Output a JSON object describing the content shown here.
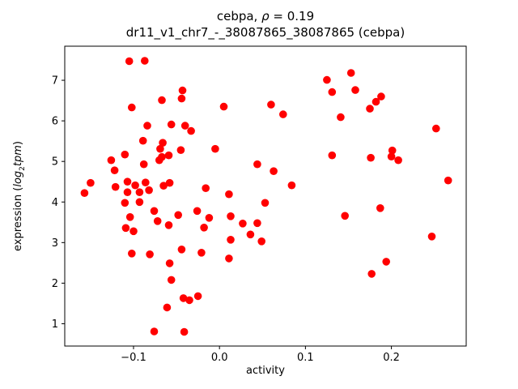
{
  "figure": {
    "background": "#ffffff"
  },
  "chart_data": {
    "type": "scatter",
    "title": "cebpa, ρ = 0.19",
    "title_parts": {
      "prefix": "cebpa, ",
      "rho": "ρ",
      "suffix": " = 0.19"
    },
    "subtitle": "dr11_v1_chr7_-_38087865_38087865 (cebpa)",
    "rho": 0.19,
    "xlabel": "activity",
    "ylabel": "expression (log2tpm)",
    "ylabel_parts": {
      "prefix": "expression (",
      "log": "log",
      "sub": "2",
      "tpm": "tpm",
      "suffix": ")"
    },
    "xlim": [
      -0.18,
      0.287
    ],
    "ylim": [
      0.45,
      7.84
    ],
    "xticks": [
      -0.1,
      0.0,
      0.1,
      0.2
    ],
    "xtick_labels": [
      "−0.1",
      "0.0",
      "0.1",
      "0.2"
    ],
    "yticks": [
      1,
      2,
      3,
      4,
      5,
      6,
      7
    ],
    "ytick_labels": [
      "1",
      "2",
      "3",
      "4",
      "5",
      "6",
      "7"
    ],
    "grid": false,
    "legend": null,
    "marker": {
      "shape": "circle",
      "color": "#ff0000",
      "radius": 4.8
    },
    "points": [
      [
        -0.105,
        7.47
      ],
      [
        -0.087,
        7.48
      ],
      [
        -0.102,
        6.33
      ],
      [
        -0.067,
        6.51
      ],
      [
        -0.043,
        6.75
      ],
      [
        -0.044,
        6.55
      ],
      [
        -0.084,
        5.88
      ],
      [
        -0.056,
        5.91
      ],
      [
        -0.04,
        5.88
      ],
      [
        -0.033,
        5.75
      ],
      [
        -0.089,
        5.51
      ],
      [
        -0.066,
        5.46
      ],
      [
        -0.069,
        5.31
      ],
      [
        -0.067,
        5.11
      ],
      [
        -0.059,
        5.15
      ],
      [
        -0.045,
        5.28
      ],
      [
        -0.11,
        5.17
      ],
      [
        -0.126,
        5.03
      ],
      [
        -0.07,
        5.03
      ],
      [
        -0.088,
        4.93
      ],
      [
        -0.122,
        4.78
      ],
      [
        -0.15,
        4.47
      ],
      [
        -0.157,
        4.22
      ],
      [
        -0.121,
        4.37
      ],
      [
        -0.107,
        4.5
      ],
      [
        -0.107,
        4.24
      ],
      [
        -0.098,
        4.41
      ],
      [
        -0.093,
        4.24
      ],
      [
        -0.086,
        4.48
      ],
      [
        -0.082,
        4.29
      ],
      [
        -0.065,
        4.4
      ],
      [
        -0.058,
        4.47
      ],
      [
        -0.016,
        4.34
      ],
      [
        0.011,
        4.19
      ],
      [
        0.125,
        7.01
      ],
      [
        0.153,
        7.18
      ],
      [
        0.131,
        6.71
      ],
      [
        0.158,
        6.76
      ],
      [
        0.188,
        6.6
      ],
      [
        0.182,
        6.47
      ],
      [
        0.175,
        6.3
      ],
      [
        0.141,
        6.09
      ],
      [
        0.005,
        6.35
      ],
      [
        0.06,
        6.4
      ],
      [
        0.074,
        6.16
      ],
      [
        0.252,
        5.81
      ],
      [
        -0.005,
        5.31
      ],
      [
        0.131,
        5.15
      ],
      [
        0.044,
        4.93
      ],
      [
        0.063,
        4.76
      ],
      [
        0.084,
        4.41
      ],
      [
        0.201,
        5.27
      ],
      [
        0.2,
        5.12
      ],
      [
        0.208,
        5.03
      ],
      [
        0.176,
        5.09
      ],
      [
        0.266,
        4.53
      ],
      [
        -0.11,
        3.98
      ],
      [
        -0.093,
        4.0
      ],
      [
        -0.076,
        3.78
      ],
      [
        -0.104,
        3.63
      ],
      [
        -0.072,
        3.53
      ],
      [
        -0.059,
        3.43
      ],
      [
        -0.048,
        3.68
      ],
      [
        -0.026,
        3.78
      ],
      [
        -0.109,
        3.36
      ],
      [
        -0.1,
        3.28
      ],
      [
        -0.018,
        3.37
      ],
      [
        -0.102,
        2.73
      ],
      [
        -0.081,
        2.71
      ],
      [
        -0.058,
        2.49
      ],
      [
        -0.044,
        2.83
      ],
      [
        -0.021,
        2.75
      ],
      [
        -0.056,
        2.08
      ],
      [
        -0.042,
        1.63
      ],
      [
        -0.035,
        1.58
      ],
      [
        -0.025,
        1.68
      ],
      [
        -0.061,
        1.4
      ],
      [
        -0.076,
        0.81
      ],
      [
        -0.041,
        0.8
      ],
      [
        0.053,
        3.98
      ],
      [
        -0.012,
        3.61
      ],
      [
        0.013,
        3.65
      ],
      [
        0.027,
        3.47
      ],
      [
        0.044,
        3.48
      ],
      [
        0.036,
        3.2
      ],
      [
        0.049,
        3.03
      ],
      [
        0.013,
        3.07
      ],
      [
        0.011,
        2.61
      ],
      [
        0.146,
        3.66
      ],
      [
        0.187,
        3.85
      ],
      [
        0.247,
        3.15
      ],
      [
        0.194,
        2.53
      ],
      [
        0.177,
        2.23
      ]
    ]
  }
}
